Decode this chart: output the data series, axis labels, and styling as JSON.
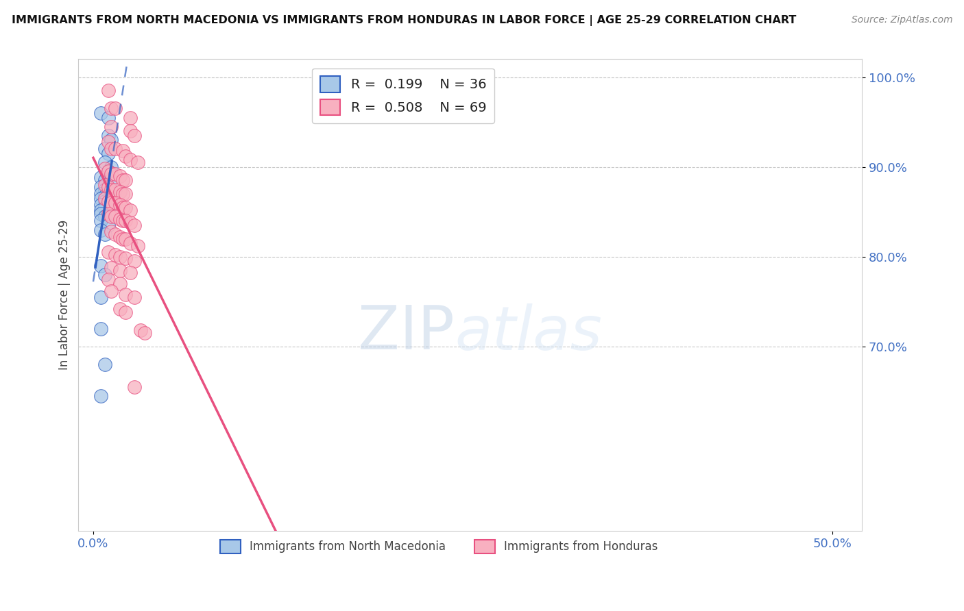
{
  "title": "IMMIGRANTS FROM NORTH MACEDONIA VS IMMIGRANTS FROM HONDURAS IN LABOR FORCE | AGE 25-29 CORRELATION CHART",
  "source": "Source: ZipAtlas.com",
  "ylabel": "In Labor Force | Age 25-29",
  "xlim": [
    -0.01,
    0.52
  ],
  "ylim": [
    0.495,
    1.02
  ],
  "legend_r_blue": "R =  0.199",
  "legend_n_blue": "N = 36",
  "legend_r_pink": "R =  0.508",
  "legend_n_pink": "N = 69",
  "legend_label_blue": "Immigrants from North Macedonia",
  "legend_label_pink": "Immigrants from Honduras",
  "blue_color": "#a8c8e8",
  "pink_color": "#f8b0c0",
  "blue_line_color": "#3060c0",
  "pink_line_color": "#e85080",
  "blue_scatter": [
    [
      0.005,
      0.96
    ],
    [
      0.01,
      0.955
    ],
    [
      0.01,
      0.935
    ],
    [
      0.012,
      0.93
    ],
    [
      0.008,
      0.92
    ],
    [
      0.01,
      0.915
    ],
    [
      0.008,
      0.905
    ],
    [
      0.012,
      0.9
    ],
    [
      0.01,
      0.895
    ],
    [
      0.005,
      0.888
    ],
    [
      0.008,
      0.885
    ],
    [
      0.012,
      0.885
    ],
    [
      0.005,
      0.878
    ],
    [
      0.008,
      0.875
    ],
    [
      0.01,
      0.872
    ],
    [
      0.005,
      0.87
    ],
    [
      0.008,
      0.868
    ],
    [
      0.005,
      0.865
    ],
    [
      0.008,
      0.862
    ],
    [
      0.01,
      0.86
    ],
    [
      0.005,
      0.858
    ],
    [
      0.008,
      0.855
    ],
    [
      0.012,
      0.858
    ],
    [
      0.005,
      0.852
    ],
    [
      0.005,
      0.848
    ],
    [
      0.008,
      0.845
    ],
    [
      0.005,
      0.84
    ],
    [
      0.01,
      0.835
    ],
    [
      0.005,
      0.83
    ],
    [
      0.008,
      0.825
    ],
    [
      0.005,
      0.79
    ],
    [
      0.008,
      0.78
    ],
    [
      0.005,
      0.755
    ],
    [
      0.005,
      0.72
    ],
    [
      0.008,
      0.68
    ],
    [
      0.005,
      0.645
    ]
  ],
  "pink_scatter": [
    [
      0.01,
      0.985
    ],
    [
      0.012,
      0.965
    ],
    [
      0.015,
      0.965
    ],
    [
      0.025,
      0.955
    ],
    [
      0.012,
      0.945
    ],
    [
      0.025,
      0.94
    ],
    [
      0.028,
      0.935
    ],
    [
      0.01,
      0.928
    ],
    [
      0.012,
      0.92
    ],
    [
      0.015,
      0.92
    ],
    [
      0.02,
      0.918
    ],
    [
      0.022,
      0.912
    ],
    [
      0.025,
      0.908
    ],
    [
      0.03,
      0.905
    ],
    [
      0.008,
      0.898
    ],
    [
      0.01,
      0.895
    ],
    [
      0.012,
      0.892
    ],
    [
      0.015,
      0.892
    ],
    [
      0.018,
      0.89
    ],
    [
      0.02,
      0.885
    ],
    [
      0.022,
      0.885
    ],
    [
      0.008,
      0.88
    ],
    [
      0.01,
      0.878
    ],
    [
      0.012,
      0.875
    ],
    [
      0.015,
      0.875
    ],
    [
      0.018,
      0.872
    ],
    [
      0.02,
      0.87
    ],
    [
      0.022,
      0.87
    ],
    [
      0.008,
      0.865
    ],
    [
      0.01,
      0.862
    ],
    [
      0.012,
      0.86
    ],
    [
      0.015,
      0.86
    ],
    [
      0.018,
      0.858
    ],
    [
      0.02,
      0.855
    ],
    [
      0.022,
      0.855
    ],
    [
      0.025,
      0.852
    ],
    [
      0.01,
      0.848
    ],
    [
      0.012,
      0.845
    ],
    [
      0.015,
      0.845
    ],
    [
      0.018,
      0.842
    ],
    [
      0.02,
      0.84
    ],
    [
      0.022,
      0.84
    ],
    [
      0.025,
      0.838
    ],
    [
      0.028,
      0.835
    ],
    [
      0.012,
      0.828
    ],
    [
      0.015,
      0.825
    ],
    [
      0.018,
      0.822
    ],
    [
      0.02,
      0.82
    ],
    [
      0.022,
      0.82
    ],
    [
      0.025,
      0.815
    ],
    [
      0.03,
      0.812
    ],
    [
      0.01,
      0.805
    ],
    [
      0.015,
      0.802
    ],
    [
      0.018,
      0.8
    ],
    [
      0.022,
      0.798
    ],
    [
      0.028,
      0.795
    ],
    [
      0.012,
      0.788
    ],
    [
      0.018,
      0.785
    ],
    [
      0.025,
      0.782
    ],
    [
      0.01,
      0.775
    ],
    [
      0.018,
      0.77
    ],
    [
      0.012,
      0.762
    ],
    [
      0.022,
      0.758
    ],
    [
      0.028,
      0.755
    ],
    [
      0.018,
      0.742
    ],
    [
      0.022,
      0.738
    ],
    [
      0.032,
      0.718
    ],
    [
      0.035,
      0.715
    ],
    [
      0.028,
      0.655
    ]
  ],
  "watermark_zip": "ZIP",
  "watermark_atlas": "atlas",
  "background_color": "#ffffff"
}
